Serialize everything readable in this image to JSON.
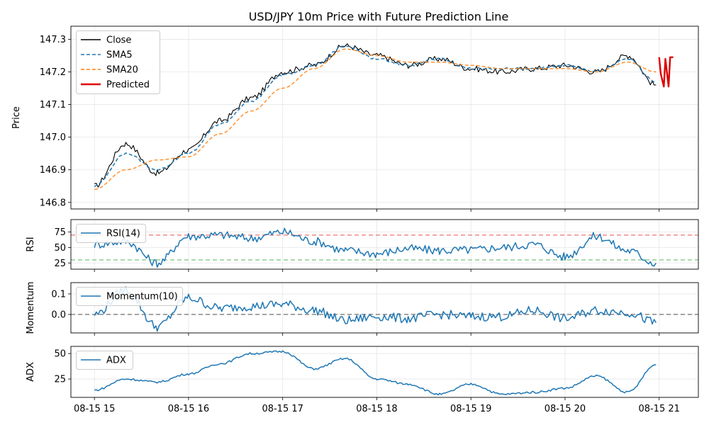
{
  "chart_data": [
    {
      "type": "line",
      "title": "USD/JPY 10m Price with Future Prediction Line",
      "ylabel": "Price",
      "ylim": [
        146.78,
        147.34
      ],
      "yticks": [
        146.8,
        146.9,
        147.0,
        147.1,
        147.2,
        147.3
      ],
      "ytick_labels": [
        "146.8",
        "146.9",
        "147.0",
        "147.1",
        "147.2",
        "147.3"
      ],
      "grid": true,
      "legend": "top-left",
      "series": [
        {
          "name": "Close",
          "color": "#000000",
          "style": "solid",
          "x": [
            "08-15 15:00",
            "08-15 15:20",
            "08-15 15:40",
            "08-15 16:00",
            "08-15 16:20",
            "08-15 16:40",
            "08-15 17:00",
            "08-15 17:20",
            "08-15 17:40",
            "08-15 18:00",
            "08-15 18:20",
            "08-15 18:40",
            "08-15 19:00",
            "08-15 19:20",
            "08-15 19:40",
            "08-15 20:00",
            "08-15 20:20",
            "08-15 20:40",
            "08-15 20:58"
          ],
          "values": [
            146.85,
            146.98,
            146.89,
            146.96,
            147.05,
            147.12,
            147.2,
            147.22,
            147.28,
            147.25,
            147.22,
            147.24,
            147.21,
            147.2,
            147.21,
            147.22,
            147.2,
            147.25,
            147.16
          ]
        },
        {
          "name": "SMA5",
          "color": "#1f77b4",
          "style": "dashed",
          "x": [
            "08-15 15:00",
            "08-15 15:20",
            "08-15 15:40",
            "08-15 16:00",
            "08-15 16:20",
            "08-15 16:40",
            "08-15 17:00",
            "08-15 17:20",
            "08-15 17:40",
            "08-15 18:00",
            "08-15 18:20",
            "08-15 18:40",
            "08-15 19:00",
            "08-15 19:20",
            "08-15 19:40",
            "08-15 20:00",
            "08-15 20:20",
            "08-15 20:40",
            "08-15 20:58"
          ],
          "values": [
            146.85,
            146.95,
            146.9,
            146.95,
            147.04,
            147.11,
            147.19,
            147.22,
            147.28,
            147.24,
            147.22,
            147.24,
            147.21,
            147.21,
            147.21,
            147.22,
            147.2,
            147.24,
            147.17
          ]
        },
        {
          "name": "SMA20",
          "color": "#ff7f0e",
          "style": "dashed",
          "x": [
            "08-15 15:00",
            "08-15 15:20",
            "08-15 15:40",
            "08-15 16:00",
            "08-15 16:20",
            "08-15 16:40",
            "08-15 17:00",
            "08-15 17:20",
            "08-15 17:40",
            "08-15 18:00",
            "08-15 18:20",
            "08-15 18:40",
            "08-15 19:00",
            "08-15 19:20",
            "08-15 19:40",
            "08-15 20:00",
            "08-15 20:20",
            "08-15 20:40",
            "08-15 20:58"
          ],
          "values": [
            146.84,
            146.9,
            146.93,
            146.94,
            147.01,
            147.08,
            147.15,
            147.21,
            147.27,
            147.25,
            147.23,
            147.23,
            147.22,
            147.21,
            147.21,
            147.21,
            147.2,
            147.23,
            147.2
          ]
        },
        {
          "name": "Predicted",
          "color": "#e00000",
          "style": "solid",
          "x": [
            "08-15 21:00",
            "08-15 21:01",
            "08-15 21:03",
            "08-15 21:04",
            "08-15 21:06",
            "08-15 21:07",
            "08-15 21:09"
          ],
          "values": [
            147.245,
            147.195,
            147.155,
            147.24,
            147.155,
            147.245,
            147.245
          ]
        }
      ]
    },
    {
      "type": "line",
      "ylabel": "RSI",
      "ylim": [
        15,
        95
      ],
      "yticks": [
        25,
        50,
        75
      ],
      "ytick_labels": [
        "25",
        "50",
        "75"
      ],
      "reference_lines": [
        {
          "value": 70,
          "color": "#ef8a8a"
        },
        {
          "value": 30,
          "color": "#8fce8f"
        }
      ],
      "legend": "top-left",
      "series": [
        {
          "name": "RSI(14)",
          "color": "#1f77b4",
          "x": [
            "08-15 15:00",
            "08-15 15:20",
            "08-15 15:40",
            "08-15 16:00",
            "08-15 16:20",
            "08-15 16:40",
            "08-15 17:00",
            "08-15 17:20",
            "08-15 17:40",
            "08-15 18:00",
            "08-15 18:20",
            "08-15 18:40",
            "08-15 19:00",
            "08-15 19:20",
            "08-15 19:40",
            "08-15 20:00",
            "08-15 20:20",
            "08-15 20:40",
            "08-15 20:58"
          ],
          "values": [
            55,
            60,
            25,
            68,
            70,
            65,
            75,
            60,
            45,
            40,
            48,
            45,
            46,
            50,
            55,
            35,
            68,
            45,
            25
          ]
        }
      ]
    },
    {
      "type": "line",
      "ylabel": "Momentum",
      "ylim": [
        -0.09,
        0.155
      ],
      "yticks": [
        0.0,
        0.1
      ],
      "ytick_labels": [
        "0.0",
        "0.1"
      ],
      "reference_lines": [
        {
          "value": 0,
          "color": "#888888"
        }
      ],
      "legend": "top-left",
      "series": [
        {
          "name": "Momentum(10)",
          "color": "#1f77b4",
          "x": [
            "08-15 15:00",
            "08-15 15:20",
            "08-15 15:40",
            "08-15 16:00",
            "08-15 16:20",
            "08-15 16:40",
            "08-15 17:00",
            "08-15 17:20",
            "08-15 17:40",
            "08-15 18:00",
            "08-15 18:20",
            "08-15 18:40",
            "08-15 19:00",
            "08-15 19:20",
            "08-15 19:40",
            "08-15 20:00",
            "08-15 20:20",
            "08-15 20:40",
            "08-15 20:58"
          ],
          "values": [
            0.0,
            0.12,
            -0.06,
            0.08,
            0.03,
            0.04,
            0.05,
            0.02,
            -0.03,
            -0.01,
            -0.02,
            0.0,
            -0.01,
            -0.01,
            0.02,
            -0.02,
            0.02,
            0.01,
            -0.04
          ]
        }
      ]
    },
    {
      "type": "line",
      "ylabel": "ADX",
      "ylim": [
        7,
        57
      ],
      "yticks": [
        25,
        50
      ],
      "ytick_labels": [
        "25",
        "50"
      ],
      "legend": "top-left",
      "series": [
        {
          "name": "ADX",
          "color": "#1f77b4",
          "x": [
            "08-15 15:00",
            "08-15 15:20",
            "08-15 15:40",
            "08-15 16:00",
            "08-15 16:20",
            "08-15 16:40",
            "08-15 17:00",
            "08-15 17:20",
            "08-15 17:40",
            "08-15 18:00",
            "08-15 18:20",
            "08-15 18:40",
            "08-15 19:00",
            "08-15 19:20",
            "08-15 19:40",
            "08-15 20:00",
            "08-15 20:20",
            "08-15 20:40",
            "08-15 20:58"
          ],
          "values": [
            14,
            25,
            22,
            30,
            40,
            50,
            52,
            35,
            45,
            25,
            20,
            10,
            20,
            10,
            12,
            16,
            28,
            12,
            39
          ]
        }
      ]
    }
  ],
  "x_axis": {
    "range": [
      "08-15 14:45",
      "08-15 21:25"
    ],
    "ticks": [
      "08-15 15:00",
      "08-15 16:00",
      "08-15 17:00",
      "08-15 18:00",
      "08-15 19:00",
      "08-15 20:00",
      "08-15 21:00"
    ],
    "tick_labels": [
      "08-15 15",
      "08-15 16",
      "08-15 17",
      "08-15 18",
      "08-15 19",
      "08-15 20",
      "08-15 21"
    ]
  }
}
